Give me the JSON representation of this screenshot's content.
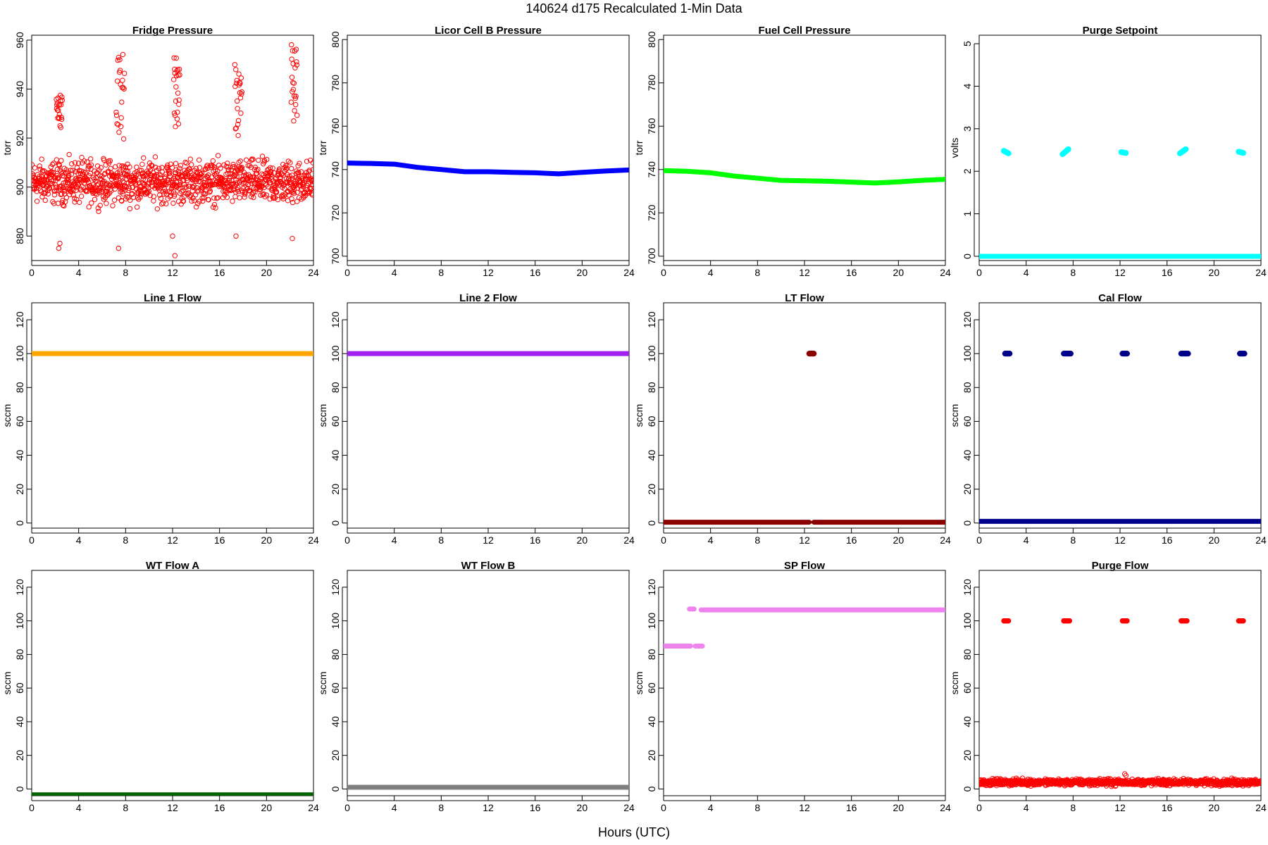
{
  "figure": {
    "title": "140624    d175    Recalculated 1-Min Data",
    "xlabel": "Hours (UTC)"
  },
  "chart_data": [
    {
      "type": "scatter",
      "title": "Fridge Pressure",
      "ylabel": "torr",
      "xlim": [
        0,
        24
      ],
      "ylim": [
        870,
        962
      ],
      "xticks": [
        0,
        4,
        8,
        12,
        16,
        20,
        24
      ],
      "yticks": [
        880,
        900,
        920,
        940,
        960
      ],
      "color": "#ff0000",
      "marker": "open-circle",
      "series": [
        {
          "kind": "noisy",
          "x_range": [
            0,
            24
          ],
          "center": 902,
          "spread": 6,
          "outliers": [
            [
              2.3,
              875
            ],
            [
              2.4,
              877
            ],
            [
              7.4,
              875
            ],
            [
              12.2,
              872
            ],
            [
              12.0,
              880
            ],
            [
              17.4,
              880
            ],
            [
              22.2,
              879
            ]
          ]
        },
        {
          "kind": "segments",
          "segments": [
            [
              2.1,
              2.6,
              925,
              938
            ],
            [
              7.2,
              7.9,
              920,
              953
            ],
            [
              12.1,
              12.6,
              925,
              952
            ],
            [
              17.3,
              17.9,
              918,
              950
            ],
            [
              22.1,
              22.6,
              925,
              957
            ]
          ]
        }
      ]
    },
    {
      "type": "line",
      "title": "Licor Cell B Pressure",
      "ylabel": "torr",
      "xlim": [
        0,
        24
      ],
      "ylim": [
        698,
        802
      ],
      "xticks": [
        0,
        4,
        8,
        12,
        16,
        20,
        24
      ],
      "yticks": [
        700,
        720,
        740,
        760,
        780,
        800
      ],
      "color": "#0000ff",
      "series": [
        {
          "x": [
            0,
            2,
            4,
            6,
            8,
            10,
            12,
            14,
            16,
            18,
            20,
            22,
            24
          ],
          "y": [
            743,
            742.8,
            742.5,
            741,
            740,
            739,
            739,
            738.7,
            738.5,
            738,
            738.7,
            739.3,
            739.8
          ]
        }
      ]
    },
    {
      "type": "line",
      "title": "Fuel Cell Pressure",
      "ylabel": "torr",
      "xlim": [
        0,
        24
      ],
      "ylim": [
        698,
        802
      ],
      "xticks": [
        0,
        4,
        8,
        12,
        16,
        20,
        24
      ],
      "yticks": [
        700,
        720,
        740,
        760,
        780,
        800
      ],
      "color": "#00ff00",
      "series": [
        {
          "x": [
            0,
            2,
            4,
            6,
            8,
            10,
            12,
            14,
            16,
            18,
            20,
            22,
            24
          ],
          "y": [
            739.5,
            739.2,
            738.5,
            737,
            736,
            735,
            734.8,
            734.6,
            734.2,
            733.8,
            734.3,
            735,
            735.5
          ]
        }
      ]
    },
    {
      "type": "scatter",
      "title": "Purge Setpoint",
      "ylabel": "volts",
      "xlim": [
        0,
        24
      ],
      "ylim": [
        -0.1,
        5.2
      ],
      "xticks": [
        0,
        4,
        8,
        12,
        16,
        20,
        24
      ],
      "yticks": [
        0,
        1,
        2,
        3,
        4,
        5
      ],
      "color": "#00ffff",
      "series": [
        {
          "kind": "flat",
          "x_range": [
            0,
            24
          ],
          "value": 0
        },
        {
          "kind": "segments",
          "segments": [
            [
              2.1,
              2.5,
              2.48,
              2.42
            ],
            [
              7.1,
              7.6,
              2.4,
              2.52
            ],
            [
              12.1,
              12.5,
              2.45,
              2.43
            ],
            [
              17.1,
              17.6,
              2.42,
              2.52
            ],
            [
              22.1,
              22.5,
              2.46,
              2.43
            ]
          ]
        }
      ]
    },
    {
      "type": "line",
      "title": "Line 1 Flow",
      "ylabel": "sccm",
      "xlim": [
        0,
        24
      ],
      "ylim": [
        -3,
        130
      ],
      "xticks": [
        0,
        4,
        8,
        12,
        16,
        20,
        24
      ],
      "yticks": [
        0,
        20,
        40,
        60,
        80,
        100,
        120
      ],
      "color": "#ffa500",
      "series": [
        {
          "x": [
            0,
            24
          ],
          "y": [
            100,
            100
          ]
        }
      ]
    },
    {
      "type": "line",
      "title": "Line 2 Flow",
      "ylabel": "sccm",
      "xlim": [
        0,
        24
      ],
      "ylim": [
        -3,
        130
      ],
      "xticks": [
        0,
        4,
        8,
        12,
        16,
        20,
        24
      ],
      "yticks": [
        0,
        20,
        40,
        60,
        80,
        100,
        120
      ],
      "color": "#a020f0",
      "series": [
        {
          "x": [
            0,
            24
          ],
          "y": [
            100,
            100
          ]
        }
      ]
    },
    {
      "type": "scatter",
      "title": "LT Flow",
      "ylabel": "sccm",
      "xlim": [
        0,
        24
      ],
      "ylim": [
        -3,
        130
      ],
      "xticks": [
        0,
        4,
        8,
        12,
        16,
        20,
        24
      ],
      "yticks": [
        0,
        20,
        40,
        60,
        80,
        100,
        120
      ],
      "color": "#8b0000",
      "series": [
        {
          "kind": "flat",
          "x_range": [
            0,
            12.4
          ],
          "value": 0.5
        },
        {
          "kind": "flat",
          "x_range": [
            12.8,
            24
          ],
          "value": 0.5
        },
        {
          "kind": "segments",
          "segments": [
            [
              12.4,
              12.8,
              100,
              100
            ]
          ]
        }
      ]
    },
    {
      "type": "scatter",
      "title": "Cal Flow",
      "ylabel": "sccm",
      "xlim": [
        0,
        24
      ],
      "ylim": [
        -3,
        130
      ],
      "xticks": [
        0,
        4,
        8,
        12,
        16,
        20,
        24
      ],
      "yticks": [
        0,
        20,
        40,
        60,
        80,
        100,
        120
      ],
      "color": "#00008b",
      "series": [
        {
          "kind": "flat",
          "x_range": [
            0,
            24
          ],
          "value": 1
        },
        {
          "kind": "segments",
          "segments": [
            [
              2.2,
              2.6,
              100,
              100
            ],
            [
              7.2,
              7.8,
              100,
              100
            ],
            [
              12.2,
              12.6,
              100,
              100
            ],
            [
              17.2,
              17.8,
              100,
              100
            ],
            [
              22.2,
              22.6,
              100,
              100
            ]
          ]
        }
      ]
    },
    {
      "type": "line",
      "title": "WT Flow A",
      "ylabel": "sccm",
      "xlim": [
        0,
        24
      ],
      "ylim": [
        -4,
        130
      ],
      "xticks": [
        0,
        4,
        8,
        12,
        16,
        20,
        24
      ],
      "yticks": [
        0,
        20,
        40,
        60,
        80,
        100,
        120
      ],
      "color": "#006400",
      "series": [
        {
          "x": [
            0,
            24
          ],
          "y": [
            -3.5,
            -3.5
          ]
        }
      ]
    },
    {
      "type": "line",
      "title": "WT Flow B",
      "ylabel": "sccm",
      "xlim": [
        0,
        24
      ],
      "ylim": [
        -4,
        130
      ],
      "xticks": [
        0,
        4,
        8,
        12,
        16,
        20,
        24
      ],
      "yticks": [
        0,
        20,
        40,
        60,
        80,
        100,
        120
      ],
      "color": "#808080",
      "series": [
        {
          "x": [
            0,
            24
          ],
          "y": [
            1,
            1
          ]
        }
      ]
    },
    {
      "type": "scatter",
      "title": "SP Flow",
      "ylabel": "sccm",
      "xlim": [
        0,
        24
      ],
      "ylim": [
        -4,
        130
      ],
      "xticks": [
        0,
        4,
        8,
        12,
        16,
        20,
        24
      ],
      "yticks": [
        0,
        20,
        40,
        60,
        80,
        100,
        120
      ],
      "color": "#ee82ee",
      "series": [
        {
          "kind": "flat",
          "x_range": [
            0,
            2.3
          ],
          "value": 85
        },
        {
          "kind": "flat",
          "x_range": [
            2.7,
            3.3
          ],
          "value": 85
        },
        {
          "kind": "flat",
          "x_range": [
            2.2,
            2.6
          ],
          "value": 107
        },
        {
          "kind": "flat",
          "x_range": [
            3.2,
            24
          ],
          "value": 106.5
        }
      ]
    },
    {
      "type": "scatter",
      "title": "Purge Flow",
      "ylabel": "sccm",
      "xlim": [
        0,
        24
      ],
      "ylim": [
        -4,
        130
      ],
      "xticks": [
        0,
        4,
        8,
        12,
        16,
        20,
        24
      ],
      "yticks": [
        0,
        20,
        40,
        60,
        80,
        100,
        120
      ],
      "color": "#ff0000",
      "marker": "open-circle",
      "series": [
        {
          "kind": "noisy",
          "x_range": [
            0,
            24
          ],
          "center": 4,
          "spread": 1.3,
          "outliers": [
            [
              12.4,
              9
            ],
            [
              12.5,
              8
            ]
          ]
        },
        {
          "kind": "segments",
          "segments": [
            [
              2.1,
              2.5,
              100,
              100
            ],
            [
              7.2,
              7.7,
              100,
              100
            ],
            [
              12.2,
              12.6,
              100,
              100
            ],
            [
              17.2,
              17.7,
              100,
              100
            ],
            [
              22.1,
              22.5,
              100,
              100
            ]
          ]
        }
      ]
    }
  ]
}
